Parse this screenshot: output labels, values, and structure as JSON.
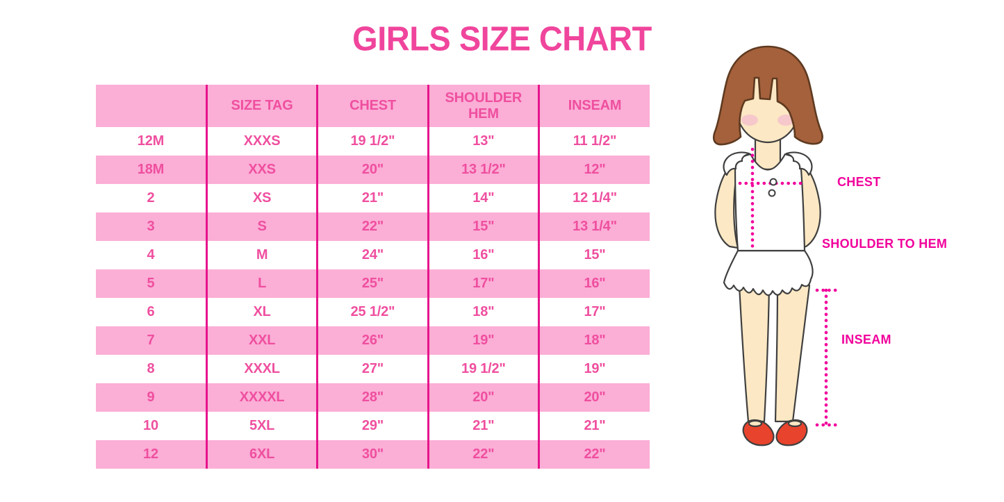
{
  "title": "GIRLS SIZE CHART",
  "colors": {
    "title_pink": "#F0459C",
    "cell_text_pink": "#EF4F9F",
    "row_pink": "#FBAED6",
    "divider_magenta": "#E6148C",
    "label_magenta": "#F1009C",
    "hair_brown": "#A5613C",
    "hair_outline": "#5E3A20",
    "skin": "#FCE8C4",
    "blush": "#F5C2CC",
    "shoe_red": "#E8432C",
    "outline_dark": "#3F3F3F"
  },
  "table": {
    "columns": [
      "",
      "SIZE TAG",
      "CHEST",
      "SHOULDER HEM",
      "INSEAM"
    ],
    "rows": [
      [
        "12M",
        "XXXS",
        "19 1/2\"",
        "13\"",
        "11 1/2\""
      ],
      [
        "18M",
        "XXS",
        "20\"",
        "13 1/2\"",
        "12\""
      ],
      [
        "2",
        "XS",
        "21\"",
        "14\"",
        "12 1/4\""
      ],
      [
        "3",
        "S",
        "22\"",
        "15\"",
        "13 1/4\""
      ],
      [
        "4",
        "M",
        "24\"",
        "16\"",
        "15\""
      ],
      [
        "5",
        "L",
        "25\"",
        "17\"",
        "16\""
      ],
      [
        "6",
        "XL",
        "25 1/2\"",
        "18\"",
        "17\""
      ],
      [
        "7",
        "XXL",
        "26\"",
        "19\"",
        "18\""
      ],
      [
        "8",
        "XXXL",
        "27\"",
        "19 1/2\"",
        "19\""
      ],
      [
        "9",
        "XXXXL",
        "28\"",
        "20\"",
        "20\""
      ],
      [
        "10",
        "5XL",
        "29\"",
        "21\"",
        "21\""
      ],
      [
        "12",
        "6XL",
        "30\"",
        "22\"",
        "22\""
      ]
    ]
  },
  "figure": {
    "labels": {
      "chest": "CHEST",
      "shoulder_to_hem": "SHOULDER TO HEM",
      "inseam": "INSEAM"
    }
  },
  "chart_data": {
    "type": "table",
    "title": "GIRLS SIZE CHART",
    "columns": [
      "",
      "SIZE TAG",
      "CHEST",
      "SHOULDER HEM",
      "INSEAM"
    ],
    "rows": [
      [
        "12M",
        "XXXS",
        "19 1/2\"",
        "13\"",
        "11 1/2\""
      ],
      [
        "18M",
        "XXS",
        "20\"",
        "13 1/2\"",
        "12\""
      ],
      [
        "2",
        "XS",
        "21\"",
        "14\"",
        "12 1/4\""
      ],
      [
        "3",
        "S",
        "22\"",
        "15\"",
        "13 1/4\""
      ],
      [
        "4",
        "M",
        "24\"",
        "16\"",
        "15\""
      ],
      [
        "5",
        "L",
        "25\"",
        "17\"",
        "16\""
      ],
      [
        "6",
        "XL",
        "25 1/2\"",
        "18\"",
        "17\""
      ],
      [
        "7",
        "XXL",
        "26\"",
        "19\"",
        "18\""
      ],
      [
        "8",
        "XXXL",
        "27\"",
        "19 1/2\"",
        "19\""
      ],
      [
        "9",
        "XXXXL",
        "28\"",
        "20\"",
        "20\""
      ],
      [
        "10",
        "5XL",
        "29\"",
        "21\"",
        "21\""
      ],
      [
        "12",
        "6XL",
        "30\"",
        "22\"",
        "22\""
      ]
    ],
    "notes": "Measurement diagram labels: CHEST (horizontal chest line), SHOULDER TO HEM (vertical shoulder-to-hem line), INSEAM (vertical leg line)."
  }
}
